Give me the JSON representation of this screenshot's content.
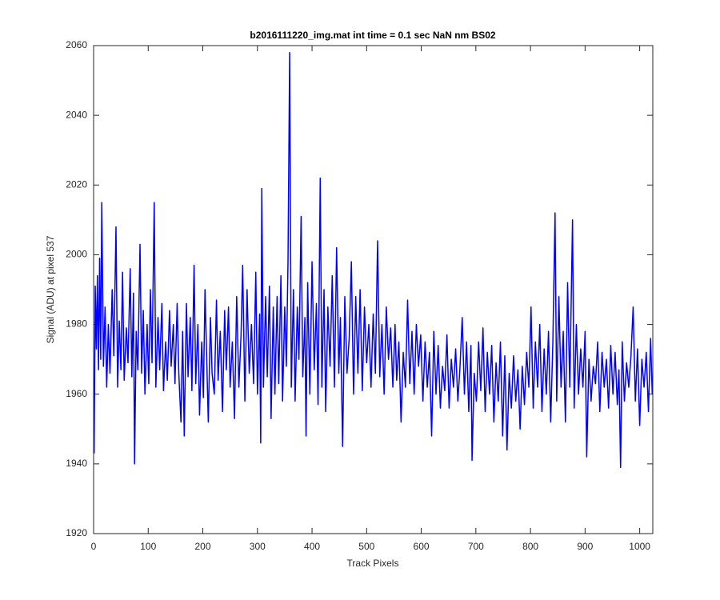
{
  "chart_data": {
    "type": "line",
    "title": "b2016111220_img.mat int time = 0.1 sec  NaN nm BS02",
    "x_label": "Track Pixels",
    "y_label": "Signal (ADU) at pixel 537",
    "xlim": [
      0,
      1024
    ],
    "xticks": [
      0,
      100,
      200,
      300,
      400,
      500,
      600,
      700,
      800,
      900,
      1000
    ],
    "ylim": [
      1920,
      2060
    ],
    "yticks": [
      1920,
      1940,
      1960,
      1980,
      2000,
      2020,
      2040,
      2060
    ],
    "grid": false,
    "x": [
      1,
      3,
      5,
      7,
      9,
      11,
      13,
      15,
      18,
      21,
      24,
      27,
      30,
      34,
      37,
      41,
      44,
      47,
      50,
      53,
      56,
      60,
      63,
      67,
      70,
      73,
      75,
      78,
      81,
      85,
      88,
      91,
      94,
      98,
      101,
      104,
      107,
      111,
      114,
      118,
      121,
      125,
      128,
      132,
      135,
      139,
      142,
      146,
      149,
      153,
      156,
      160,
      163,
      166,
      170,
      173,
      177,
      180,
      184,
      187,
      191,
      194,
      198,
      201,
      204,
      207,
      210,
      214,
      217,
      221,
      225,
      228,
      232,
      236,
      240,
      243,
      247,
      250,
      254,
      258,
      262,
      266,
      270,
      273,
      277,
      281,
      285,
      289,
      293,
      297,
      300,
      304,
      306,
      308,
      311,
      315,
      318,
      322,
      325,
      329,
      332,
      336,
      339,
      343,
      346,
      350,
      353,
      356,
      359,
      362,
      366,
      369,
      373,
      376,
      380,
      383,
      387,
      389,
      392,
      396,
      400,
      404,
      408,
      411,
      415,
      418,
      422,
      425,
      429,
      433,
      437,
      441,
      445,
      449,
      452,
      456,
      460,
      464,
      468,
      472,
      476,
      480,
      484,
      488,
      492,
      496,
      500,
      504,
      508,
      512,
      516,
      520,
      524,
      528,
      532,
      536,
      540,
      544,
      548,
      552,
      555,
      559,
      563,
      567,
      571,
      575,
      579,
      583,
      587,
      591,
      595,
      599,
      603,
      607,
      611,
      615,
      619,
      623,
      627,
      631,
      635,
      639,
      643,
      647,
      651,
      655,
      659,
      663,
      667,
      671,
      675,
      679,
      683,
      687,
      691,
      693,
      697,
      701,
      705,
      709,
      713,
      717,
      721,
      725,
      729,
      733,
      737,
      741,
      745,
      749,
      753,
      757,
      761,
      765,
      769,
      773,
      777,
      781,
      785,
      789,
      793,
      797,
      801,
      805,
      809,
      813,
      817,
      821,
      825,
      829,
      833,
      837,
      841,
      845,
      848,
      852,
      856,
      860,
      864,
      868,
      872,
      877,
      880,
      884,
      888,
      892,
      896,
      900,
      903,
      907,
      911,
      915,
      919,
      923,
      927,
      931,
      935,
      939,
      943,
      947,
      951,
      955,
      959,
      962,
      965,
      968,
      972,
      976,
      980,
      984,
      988,
      992,
      996,
      1000,
      1004,
      1008,
      1012,
      1016,
      1020,
      1023
    ],
    "series": [
      {
        "color": "#0000ff",
        "values": [
          1943,
          1991,
          1973,
          1994,
          1967,
          1999,
          1970,
          2015,
          1968,
          1985,
          1962,
          1980,
          1966,
          1990,
          1971,
          2008,
          1962,
          1981,
          1967,
          1995,
          1964,
          1979,
          1969,
          1996,
          1965,
          1989,
          1940,
          1978,
          1967,
          2003,
          1966,
          1984,
          1960,
          1980,
          1963,
          1990,
          1969,
          2015,
          1962,
          1982,
          1967,
          1986,
          1961,
          1975,
          1964,
          1984,
          1968,
          1980,
          1963,
          1986,
          1966,
          1952,
          1978,
          1948,
          1986,
          1965,
          1982,
          1961,
          1997,
          1963,
          1980,
          1954,
          1975,
          1959,
          1990,
          1971,
          1952,
          1982,
          1966,
          1960,
          1987,
          1964,
          1978,
          1955,
          1984,
          1967,
          1985,
          1962,
          1975,
          1953,
          1988,
          1962,
          1977,
          1997,
          1958,
          1990,
          1966,
          1980,
          1963,
          1995,
          1960,
          1983,
          1946,
          2019,
          1962,
          1988,
          1965,
          1991,
          1953,
          1985,
          1960,
          1988,
          1963,
          1994,
          1958,
          1985,
          1968,
          1998,
          2058,
          1962,
          1990,
          1958,
          1985,
          1970,
          2011,
          1965,
          1982,
          1948,
          1992,
          1960,
          1998,
          1967,
          1986,
          1957,
          2022,
          1962,
          1990,
          1955,
          1985,
          1968,
          1994,
          1962,
          2002,
          1966,
          1982,
          1945,
          1988,
          1966,
          1976,
          1998,
          1960,
          1988,
          1966,
          1990,
          1961,
          1985,
          1969,
          1980,
          1962,
          1983,
          1966,
          2004,
          1965,
          1980,
          1960,
          1985,
          1970,
          1979,
          1962,
          1980,
          1964,
          1975,
          1952,
          1972,
          1962,
          1987,
          1963,
          1978,
          1960,
          1980,
          1968,
          1977,
          1958,
          1975,
          1962,
          1972,
          1948,
          1978,
          1960,
          1974,
          1956,
          1968,
          1961,
          1977,
          1956,
          1970,
          1962,
          1973,
          1958,
          1968,
          1982,
          1960,
          1975,
          1955,
          1974,
          1941,
          1966,
          1958,
          1975,
          1961,
          1979,
          1955,
          1972,
          1960,
          1974,
          1952,
          1969,
          1958,
          1975,
          1948,
          1971,
          1944,
          1966,
          1956,
          1971,
          1958,
          1967,
          1950,
          1968,
          1957,
          1972,
          1962,
          1985,
          1956,
          1975,
          1962,
          1980,
          1955,
          1973,
          1960,
          1978,
          1952,
          1975,
          2012,
          1958,
          1988,
          1962,
          1978,
          1952,
          1992,
          1962,
          2010,
          1956,
          1980,
          1960,
          1973,
          1962,
          1978,
          1942,
          1970,
          1958,
          1968,
          1963,
          1975,
          1955,
          1972,
          1962,
          1970,
          1956,
          1974,
          1960,
          1972,
          1957,
          1967,
          1939,
          1975,
          1958,
          1969,
          1962,
          1971,
          1985,
          1958,
          1973,
          1951,
          1970,
          1962,
          1972,
          1955,
          1976,
          1960
        ]
      }
    ]
  }
}
